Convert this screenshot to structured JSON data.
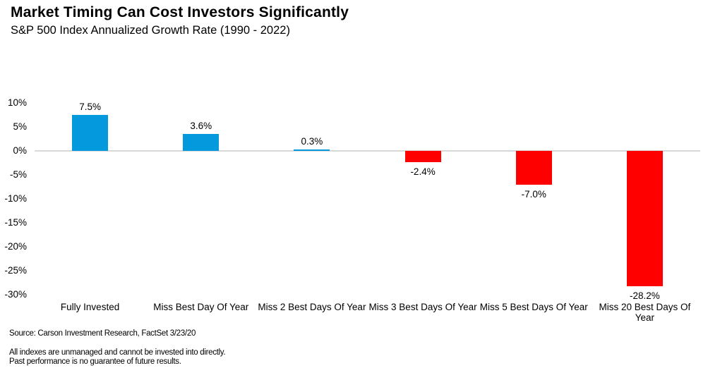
{
  "chart_data": {
    "type": "bar",
    "title": "Market Timing Can Cost Investors Significantly",
    "subtitle": "S&P 500 Index Annualized Growth Rate (1990 - 2022)",
    "categories": [
      "Fully Invested",
      "Miss Best Day Of Year",
      "Miss 2 Best Days Of Year",
      "Miss 3 Best Days Of Year",
      "Miss 5 Best Days Of Year",
      "Miss 20 Best Days Of Year"
    ],
    "values": [
      7.5,
      3.6,
      0.3,
      -2.4,
      -7.0,
      -28.2
    ],
    "value_labels": [
      "7.5%",
      "3.6%",
      "0.3%",
      "-2.4%",
      "-7.0%",
      "-28.2%"
    ],
    "xlabel": "",
    "ylabel": "",
    "ylim": [
      -30,
      10
    ],
    "yticks": [
      {
        "value": 10,
        "label": "10%"
      },
      {
        "value": 5,
        "label": "5%"
      },
      {
        "value": 0,
        "label": "0%"
      },
      {
        "value": -5,
        "label": "-5%"
      },
      {
        "value": -10,
        "label": "-10%"
      },
      {
        "value": -15,
        "label": "-15%"
      },
      {
        "value": -20,
        "label": "-20%"
      },
      {
        "value": -25,
        "label": "-25%"
      },
      {
        "value": -30,
        "label": "-30%"
      }
    ],
    "grid": false,
    "legend_position": "none",
    "colors": {
      "positive_bar": "#0499DC",
      "negative_bar": "#FE0000",
      "axis_line": "#D9D9D9",
      "text": "#000000"
    }
  },
  "footer": {
    "source": "Source: Carson Investment Research, FactSet 3/23/20",
    "disclaimer_1": "All indexes are unmanaged and cannot be invested into directly.",
    "disclaimer_2": "Past performance is no guarantee of future results."
  }
}
